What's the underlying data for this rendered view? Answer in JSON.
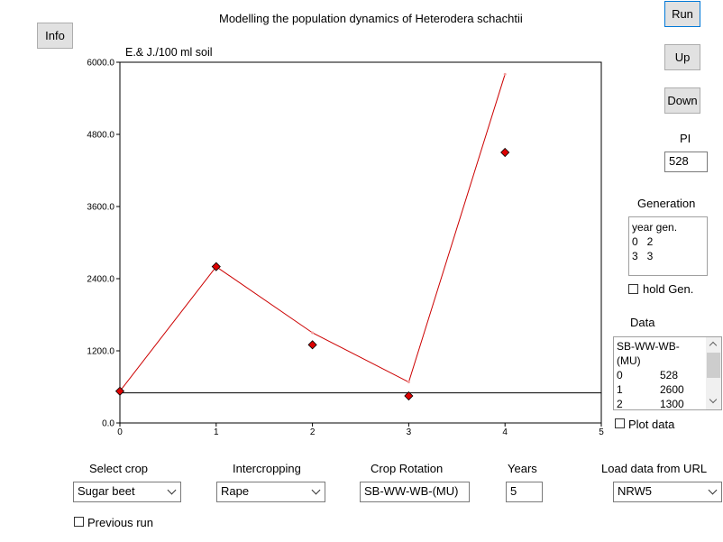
{
  "title": "Modelling the population dynamics of Heterodera schachtii",
  "buttons": {
    "info": "Info",
    "run": "Run",
    "up": "Up",
    "down": "Down"
  },
  "pi": {
    "label": "PI",
    "value": "528"
  },
  "generation": {
    "label": "Generation",
    "lines": [
      "year gen.",
      "0   2",
      "3   3"
    ]
  },
  "hold_gen": {
    "label": "hold Gen.",
    "checked": false
  },
  "data_panel": {
    "label": "Data",
    "lines": [
      [
        "SB-WW-WB-",
        ""
      ],
      [
        "(MU)",
        ""
      ],
      [
        "0",
        "528"
      ],
      [
        "1",
        "2600"
      ],
      [
        "2",
        "1300"
      ]
    ]
  },
  "plot_data": {
    "label": "Plot data",
    "checked": false
  },
  "controls": {
    "select_crop": {
      "label": "Select crop",
      "value": "Sugar beet"
    },
    "intercropping": {
      "label": "Intercropping",
      "value": "Rape"
    },
    "crop_rotation": {
      "label": "Crop Rotation",
      "value": "SB-WW-WB-(MU)"
    },
    "years": {
      "label": "Years",
      "value": "5"
    },
    "load_url": {
      "label": "Load data from URL",
      "value": "NRW5"
    }
  },
  "previous_run": {
    "label": "Previous run",
    "checked": false
  },
  "chart_data": {
    "type": "line",
    "ylabel": "E.& J./100 ml soil",
    "xlabel": "",
    "xlim": [
      0,
      5
    ],
    "ylim": [
      0,
      6000
    ],
    "x_ticks": [
      "0",
      "1",
      "2",
      "3",
      "4",
      "5"
    ],
    "y_ticks": [
      "0.0",
      "1200.0",
      "2400.0",
      "3600.0",
      "4800.0",
      "6000.0"
    ],
    "grid": false,
    "series": [
      {
        "type": "line",
        "color": "#cc0000",
        "x": [
          0,
          1,
          2,
          3,
          4
        ],
        "y": [
          528,
          2600,
          1500,
          680,
          5800
        ]
      },
      {
        "type": "scatter",
        "marker": "diamond",
        "color": "#dd0000",
        "x": [
          0,
          1,
          2,
          3,
          4
        ],
        "y": [
          528,
          2600,
          1300,
          450,
          4500
        ]
      }
    ],
    "reference_line": {
      "y": 500,
      "color": "#000000"
    }
  }
}
